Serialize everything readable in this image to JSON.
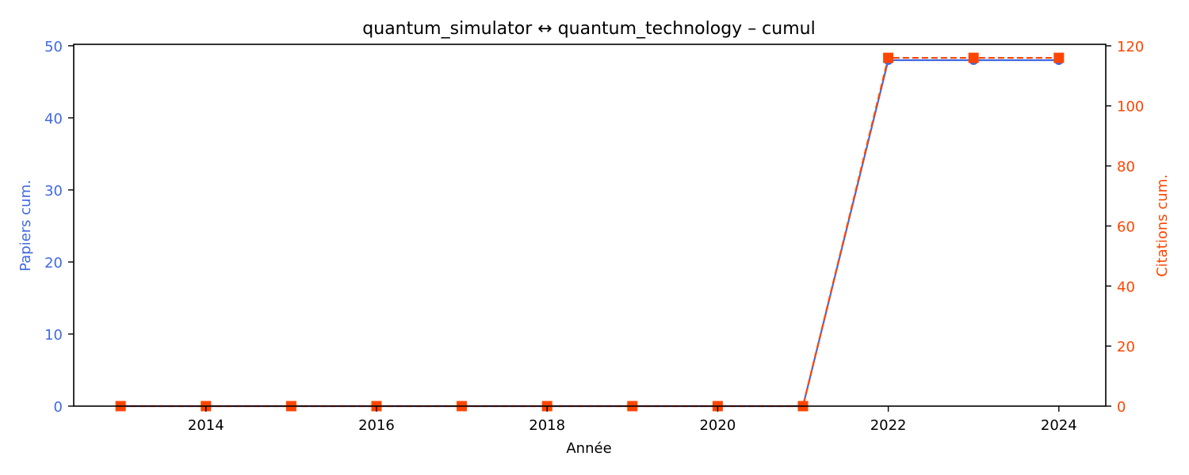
{
  "chart_data": {
    "type": "line",
    "title": "quantum_simulator  ↔  quantum_technology  –  cumul",
    "xlabel": "Année",
    "ylabel_left": "Papiers cum.",
    "ylabel_right": "Citations cum.",
    "x": [
      2013,
      2014,
      2015,
      2016,
      2017,
      2018,
      2019,
      2020,
      2021,
      2022,
      2023,
      2024
    ],
    "xlim": [
      2012.45,
      2024.55
    ],
    "xticks": [
      2014,
      2016,
      2018,
      2020,
      2022,
      2024
    ],
    "ylim_left": [
      0,
      50.2
    ],
    "yticks_left": [
      0,
      10,
      20,
      30,
      40,
      50
    ],
    "ylim_right": [
      0,
      120.5
    ],
    "yticks_right": [
      0,
      20,
      40,
      60,
      80,
      100,
      120
    ],
    "series": [
      {
        "name": "Papiers cum.",
        "axis": "left",
        "color": "#4169e1",
        "marker": "circle",
        "linestyle": "solid",
        "values": [
          0,
          0,
          0,
          0,
          0,
          0,
          0,
          0,
          0,
          48,
          48,
          48
        ]
      },
      {
        "name": "Citations cum.",
        "axis": "right",
        "color": "#ff4500",
        "marker": "square",
        "linestyle": "dashed",
        "values": [
          0,
          0,
          0,
          0,
          0,
          0,
          0,
          0,
          0,
          116,
          116,
          116
        ]
      }
    ],
    "grid": false,
    "legend": "none"
  }
}
